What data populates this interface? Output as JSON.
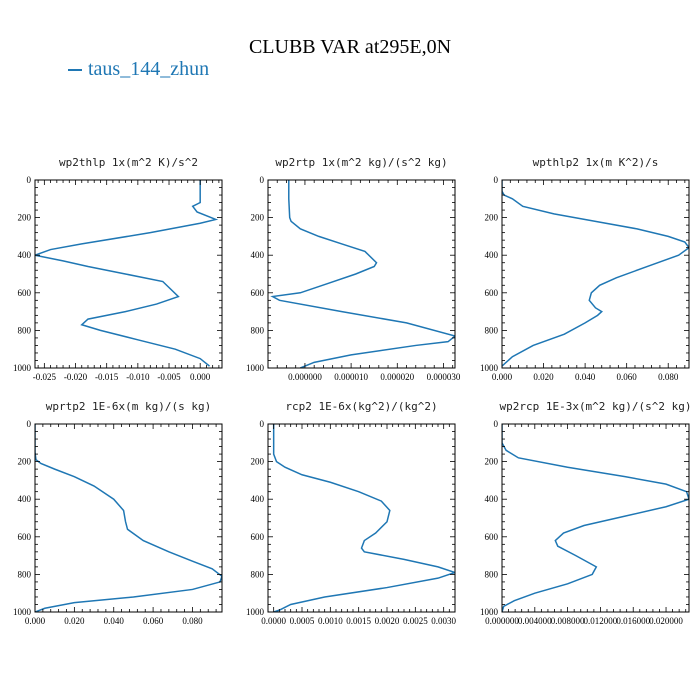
{
  "figure": {
    "title": "CLUBB VAR at295E,0N",
    "legend_label": "taus_144_zhun",
    "line_color": "#1f77b4"
  },
  "chart_data": [
    {
      "type": "line",
      "title": "wp2thlp   1x(m^2 K)/s^2",
      "xlim": [
        -0.0265,
        0.0035
      ],
      "ylim": [
        0,
        1000
      ],
      "y_inverted": true,
      "xticks": [
        -0.025,
        -0.02,
        -0.015,
        -0.01,
        -0.005,
        0.0
      ],
      "xtick_labels": [
        "-0.025",
        "-0.020",
        "-0.015",
        "-0.010",
        "-0.005",
        "0.000"
      ],
      "yticks": [
        0,
        200,
        400,
        600,
        800,
        1000
      ],
      "ytick_labels": [
        "0",
        "200",
        "400",
        "600",
        "800",
        "1000"
      ],
      "series": [
        {
          "x": [
            0.0,
            0.0,
            -0.0003,
            -0.0012,
            -0.0005,
            0.0025,
            0.0,
            -0.008,
            -0.019,
            -0.024,
            -0.0265,
            -0.022,
            -0.018,
            -0.012,
            -0.006,
            -0.0035,
            -0.007,
            -0.012,
            -0.018,
            -0.019,
            -0.016,
            -0.01,
            -0.004,
            0.0,
            0.0015
          ],
          "y": [
            0,
            120,
            125,
            140,
            170,
            210,
            230,
            280,
            340,
            370,
            400,
            430,
            460,
            500,
            540,
            620,
            660,
            700,
            740,
            770,
            800,
            850,
            900,
            950,
            990
          ]
        }
      ]
    },
    {
      "type": "line",
      "title": "wp2rtp   1x(m^2 kg)/(s^2 kg)",
      "xlim": [
        -8e-06,
        3.25e-05
      ],
      "ylim": [
        0,
        1000
      ],
      "y_inverted": true,
      "xticks": [
        0.0,
        1e-05,
        2e-05,
        3e-05
      ],
      "xtick_labels": [
        "0.000000",
        "0.000010",
        "0.000020",
        "0.000030"
      ],
      "yticks": [
        0,
        200,
        400,
        600,
        800,
        1000
      ],
      "ytick_labels": [
        "0",
        "200",
        "400",
        "600",
        "800",
        "1000"
      ],
      "series": [
        {
          "x": [
            -3.5e-06,
            -3.5e-06,
            -3.3e-06,
            -3e-06,
            -1e-06,
            3e-06,
            8e-06,
            1.3e-05,
            1.55e-05,
            1.5e-05,
            1.1e-05,
            5e-06,
            -1e-06,
            -7e-06,
            -5.5e-06,
            8e-06,
            2.2e-05,
            3.25e-05,
            3.1e-05,
            2.4e-05,
            1e-05,
            2e-06,
            -1e-06
          ],
          "y": [
            0,
            100,
            200,
            220,
            260,
            300,
            340,
            380,
            440,
            460,
            500,
            550,
            600,
            620,
            640,
            700,
            760,
            830,
            860,
            880,
            930,
            970,
            1000
          ]
        }
      ]
    },
    {
      "type": "line",
      "title": "wpthlp2   1x(m K^2)/s",
      "xlim": [
        0.0,
        0.09
      ],
      "ylim": [
        0,
        1000
      ],
      "y_inverted": true,
      "xticks": [
        0.0,
        0.02,
        0.04,
        0.06,
        0.08
      ],
      "xtick_labels": [
        "0.000",
        "0.020",
        "0.040",
        "0.060",
        "0.080"
      ],
      "yticks": [
        0,
        200,
        400,
        600,
        800,
        1000
      ],
      "ytick_labels": [
        "0",
        "200",
        "400",
        "600",
        "800",
        "1000"
      ],
      "series": [
        {
          "x": [
            0.0,
            0.0,
            0.001,
            0.005,
            0.01,
            0.025,
            0.045,
            0.065,
            0.08,
            0.088,
            0.09,
            0.085,
            0.07,
            0.055,
            0.047,
            0.043,
            0.042,
            0.045,
            0.048,
            0.046,
            0.04,
            0.03,
            0.015,
            0.005,
            0.0
          ],
          "y": [
            0,
            60,
            80,
            100,
            140,
            180,
            220,
            260,
            300,
            330,
            360,
            400,
            460,
            520,
            560,
            600,
            640,
            680,
            700,
            720,
            760,
            820,
            880,
            940,
            990
          ]
        }
      ]
    },
    {
      "type": "line",
      "title": "wprtp2   1E-6x(m kg)/(s kg)",
      "xlim": [
        0.0,
        0.095
      ],
      "ylim": [
        0,
        1000
      ],
      "y_inverted": true,
      "xticks": [
        0.0,
        0.02,
        0.04,
        0.06,
        0.08
      ],
      "xtick_labels": [
        "0.000",
        "0.020",
        "0.040",
        "0.060",
        "0.080"
      ],
      "yticks": [
        0,
        200,
        400,
        600,
        800,
        1000
      ],
      "ytick_labels": [
        "0",
        "200",
        "400",
        "600",
        "800",
        "1000"
      ],
      "series": [
        {
          "x": [
            0.0,
            0.0,
            0.0005,
            0.003,
            0.01,
            0.02,
            0.03,
            0.04,
            0.045,
            0.046,
            0.047,
            0.055,
            0.068,
            0.08,
            0.09,
            0.095,
            0.094,
            0.08,
            0.05,
            0.02,
            0.005,
            0.0
          ],
          "y": [
            0,
            150,
            190,
            210,
            240,
            280,
            330,
            400,
            460,
            520,
            560,
            620,
            680,
            730,
            770,
            810,
            840,
            880,
            920,
            950,
            980,
            1000
          ]
        }
      ]
    },
    {
      "type": "line",
      "title": "rcp2   1E-6x(kg^2)/(kg^2)",
      "xlim": [
        -0.0001,
        0.0032
      ],
      "ylim": [
        0,
        1000
      ],
      "y_inverted": true,
      "xticks": [
        0.0,
        0.0005,
        0.001,
        0.0015,
        0.002,
        0.0025,
        0.003
      ],
      "xtick_labels": [
        "0.0000",
        "0.0005",
        "0.0010",
        "0.0015",
        "0.0020",
        "0.0025",
        "0.0030"
      ],
      "yticks": [
        0,
        200,
        400,
        600,
        800,
        1000
      ],
      "ytick_labels": [
        "0",
        "200",
        "400",
        "600",
        "800",
        "1000"
      ],
      "series": [
        {
          "x": [
            0.0,
            0.0,
            5e-05,
            0.0002,
            0.0005,
            0.001,
            0.0015,
            0.0019,
            0.00205,
            0.002,
            0.0018,
            0.0016,
            0.00155,
            0.0016,
            0.0023,
            0.0029,
            0.0032,
            0.0029,
            0.002,
            0.0009,
            0.0003,
            0.0001,
            0.0
          ],
          "y": [
            0,
            160,
            200,
            230,
            270,
            310,
            360,
            410,
            460,
            520,
            580,
            620,
            660,
            680,
            720,
            760,
            790,
            820,
            870,
            920,
            960,
            990,
            1000
          ]
        }
      ]
    },
    {
      "type": "line",
      "title": "wp2rcp   1E-3x(m^2 kg)/(s^2 kg)",
      "xlim": [
        0.0,
        0.0228
      ],
      "ylim": [
        0,
        1000
      ],
      "y_inverted": true,
      "xticks": [
        0.0,
        0.004,
        0.008,
        0.012,
        0.016,
        0.02
      ],
      "xtick_labels": [
        "0.000000",
        "0.004000",
        "0.008000",
        "0.012000",
        "0.016000",
        "0.020000"
      ],
      "yticks": [
        0,
        200,
        400,
        600,
        800,
        1000
      ],
      "ytick_labels": [
        "0",
        "200",
        "400",
        "600",
        "800",
        "1000"
      ],
      "series": [
        {
          "x": [
            0.0,
            0.0,
            0.0005,
            0.002,
            0.008,
            0.015,
            0.02,
            0.0225,
            0.0228,
            0.02,
            0.015,
            0.01,
            0.0075,
            0.0065,
            0.0068,
            0.009,
            0.0115,
            0.011,
            0.008,
            0.004,
            0.0015,
            0.0002,
            0.0
          ],
          "y": [
            0,
            100,
            140,
            180,
            230,
            280,
            320,
            360,
            400,
            440,
            490,
            540,
            580,
            620,
            650,
            700,
            760,
            800,
            850,
            900,
            940,
            970,
            1000
          ]
        }
      ]
    }
  ]
}
